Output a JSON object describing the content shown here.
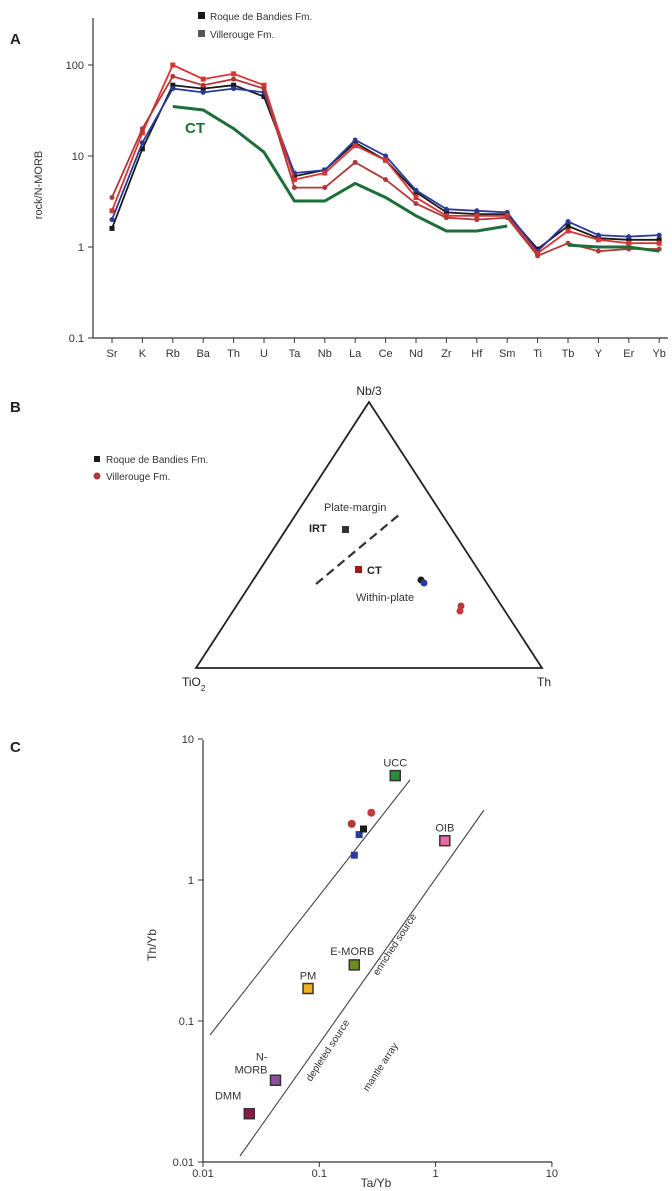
{
  "chart_data": [
    {
      "panel": "A",
      "type": "line",
      "ylabel": "rock/N-MORB",
      "yscale": "log",
      "ylim": [
        0.1,
        200
      ],
      "yticks": [
        "0.1",
        "1",
        "10",
        "100"
      ],
      "categories": [
        "Sr",
        "K",
        "Rb",
        "Ba",
        "Th",
        "U",
        "Ta",
        "Nb",
        "La",
        "Ce",
        "Nd",
        "Zr",
        "Hf",
        "Sm",
        "Ti",
        "Tb",
        "Y",
        "Er",
        "Yb"
      ],
      "legend": [
        "Roque de Bandies Fm.",
        "Villerouge Fm."
      ],
      "annotations": [
        "CT"
      ],
      "series": [
        {
          "color": "#1a1a1a",
          "values": [
            1.6,
            12,
            60,
            55,
            60,
            45,
            6,
            7,
            14,
            9,
            4,
            2.4,
            2.3,
            2.3,
            0.95,
            1.7,
            1.25,
            1.2,
            1.2
          ]
        },
        {
          "color": "#2a3a9a",
          "values": [
            2,
            14,
            55,
            50,
            55,
            50,
            6.5,
            7,
            15,
            10,
            4.2,
            2.6,
            2.5,
            2.4,
            0.9,
            1.9,
            1.35,
            1.3,
            1.35
          ]
        },
        {
          "color": "#d83434",
          "values": [
            2.5,
            18,
            100,
            70,
            80,
            60,
            5.5,
            6.5,
            13,
            9,
            3.5,
            2.2,
            2.2,
            2.2,
            0.85,
            1.5,
            1.2,
            1.1,
            1.1
          ]
        },
        {
          "color": "#b03a3a",
          "values": [
            3.5,
            20,
            75,
            60,
            70,
            55,
            4.5,
            4.5,
            8.5,
            5.5,
            3,
            2.1,
            2,
            2.1,
            0.8,
            1.1,
            0.9,
            0.95,
            0.95
          ]
        },
        {
          "color": "#1e6e3a",
          "values": [
            null,
            null,
            35,
            32,
            20,
            11,
            3.2,
            3.2,
            5,
            3.5,
            2.2,
            1.5,
            1.5,
            1.7,
            null,
            1.05,
            1.0,
            1.0,
            0.9
          ]
        }
      ]
    },
    {
      "panel": "B",
      "type": "ternary",
      "vertices": [
        "Nb/3",
        "TiO2",
        "Th"
      ],
      "legend": [
        "Roque de Bandies Fm.",
        "Villerouge Fm."
      ],
      "fields": [
        "Plate-margin",
        "Within-plate"
      ],
      "labels": [
        "IRT",
        "CT"
      ]
    },
    {
      "panel": "C",
      "type": "scatter",
      "xlabel": "Ta/Yb",
      "ylabel": "Th/Yb",
      "xscale": "log",
      "yscale": "log",
      "xlim": [
        0.01,
        10
      ],
      "ylim": [
        0.01,
        10
      ],
      "xticks": [
        "0.01",
        "0.1",
        "1",
        "10"
      ],
      "yticks": [
        "0.01",
        "0.1",
        "1",
        "10"
      ],
      "references": [
        {
          "label": "UCC",
          "x": 0.45,
          "y": 5.5,
          "color": "#2e8b3a"
        },
        {
          "label": "OIB",
          "x": 1.2,
          "y": 1.9,
          "color": "#e86aa0"
        },
        {
          "label": "E-MORB",
          "x": 0.2,
          "y": 0.25,
          "color": "#6b8e23"
        },
        {
          "label": "PM",
          "x": 0.08,
          "y": 0.17,
          "color": "#f0b020"
        },
        {
          "label": "N-MORB",
          "x": 0.042,
          "y": 0.038,
          "color": "#8e4ea0"
        },
        {
          "label": "DMM",
          "x": 0.025,
          "y": 0.022,
          "color": "#8b1a4a"
        }
      ],
      "samples": [
        {
          "x": 0.2,
          "y": 1.5,
          "color": "#2a3a9a"
        },
        {
          "x": 0.22,
          "y": 2.1,
          "color": "#2a3a9a"
        },
        {
          "x": 0.24,
          "y": 2.3,
          "color": "#1a1a1a"
        },
        {
          "x": 0.19,
          "y": 2.5,
          "color": "#b03a3a"
        },
        {
          "x": 0.28,
          "y": 3.0,
          "color": "#c23a3a"
        }
      ],
      "array_annotations": [
        "depleted source",
        "enriched source",
        "mantle array"
      ]
    }
  ]
}
